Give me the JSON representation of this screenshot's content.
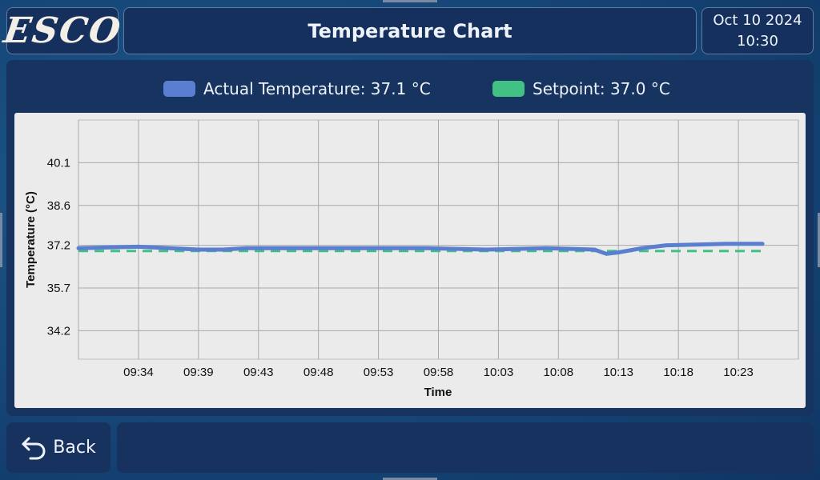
{
  "header": {
    "logo": "ESCO",
    "title": "Temperature Chart",
    "date": "Oct 10 2024",
    "time": "10:30"
  },
  "legend": {
    "actual": "Actual Temperature: 37.1 °C",
    "setpoint": "Setpoint: 37.0 °C"
  },
  "colors": {
    "actual": "#5a7fd0",
    "setpoint": "#41c184",
    "panel": "#15305c",
    "chart_bg": "#ebebeb"
  },
  "chart_data": {
    "type": "line",
    "xlabel": "Time",
    "ylabel": "Temperature (°C)",
    "x_tick_labels": [
      "09:34",
      "09:39",
      "09:43",
      "09:48",
      "09:53",
      "09:58",
      "10:03",
      "10:08",
      "10:13",
      "10:18",
      "10:23"
    ],
    "y_tick_labels": [
      "40.1",
      "38.6",
      "37.2",
      "35.7",
      "34.2"
    ],
    "ylim": [
      33.2,
      41.6
    ],
    "grid": true,
    "series": [
      {
        "name": "Actual Temperature",
        "x": [
          "09:29",
          "09:34",
          "09:39",
          "09:41",
          "09:43",
          "09:48",
          "09:53",
          "09:58",
          "10:03",
          "10:08",
          "10:12",
          "10:13",
          "10:14",
          "10:16",
          "10:18",
          "10:23",
          "10:26"
        ],
        "values": [
          37.1,
          37.15,
          37.05,
          37.05,
          37.1,
          37.1,
          37.1,
          37.1,
          37.05,
          37.1,
          37.05,
          36.9,
          36.95,
          37.1,
          37.2,
          37.25,
          37.25
        ]
      },
      {
        "name": "Setpoint",
        "x": [
          "09:29",
          "10:26"
        ],
        "values": [
          37.0,
          37.0
        ]
      }
    ]
  },
  "footer": {
    "back_label": "Back",
    "status_text": ""
  }
}
